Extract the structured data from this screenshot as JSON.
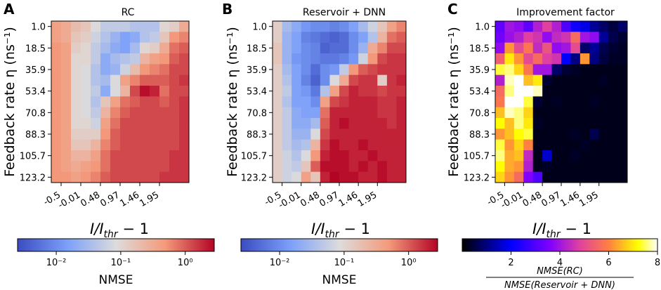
{
  "chart_data": [
    {
      "type": "heatmap",
      "panel_label": "A",
      "title": "RC",
      "ylabel": "Feedback rate η (ns⁻¹)",
      "xlabel": "I/I_thr − 1",
      "y_ticks": [
        "1.0",
        "18.5",
        "35.9",
        "53.4",
        "70.8",
        "88.3",
        "105.7",
        "123.2"
      ],
      "x_ticks": [
        "-0.5",
        "-0.01",
        "0.48",
        "0.97",
        "1.46",
        "1.95"
      ],
      "colorbar": {
        "label": "NMSE",
        "scale": "log",
        "ticks": [
          "10⁻²",
          "10⁻¹",
          "10⁰"
        ],
        "colormap": "coolwarm"
      },
      "grid_note": "log10(NMSE) per cell, rows from η=1.0 (top) to η=123.2, columns from I/Ithr−1=-0.5 upward",
      "values": [
        [
          -0.4,
          -0.5,
          -0.7,
          -0.8,
          -1.1,
          -1.3,
          -1.3,
          -1.3,
          -1.4,
          -1.4,
          -1.4,
          -1.0,
          -0.9,
          -0.5
        ],
        [
          -0.4,
          -0.5,
          -0.8,
          -0.9,
          -1.2,
          -1.4,
          -1.6,
          -1.8,
          -1.7,
          -1.4,
          -1.3,
          -0.8,
          -0.3,
          -0.2
        ],
        [
          -0.3,
          -0.4,
          -0.9,
          -1.0,
          -1.3,
          -1.5,
          -1.7,
          -1.8,
          -1.5,
          -1.0,
          -0.9,
          -0.5,
          -0.1,
          0.0
        ],
        [
          -0.3,
          -0.4,
          -1.0,
          -1.0,
          -1.3,
          -1.7,
          -1.5,
          -1.4,
          -1.3,
          -0.6,
          -0.4,
          -0.3,
          0.0,
          0.1
        ],
        [
          -0.3,
          -0.4,
          -1.0,
          -1.1,
          -1.4,
          -1.7,
          -1.6,
          -1.2,
          -0.7,
          -0.3,
          -0.2,
          -0.1,
          0.1,
          0.1
        ],
        [
          -0.3,
          -0.4,
          -1.0,
          -1.1,
          -1.4,
          -1.5,
          -1.1,
          -0.4,
          -0.2,
          0.0,
          0.0,
          0.0,
          0.1,
          0.2
        ],
        [
          -0.3,
          -0.4,
          -1.0,
          -1.1,
          -1.3,
          -1.7,
          -1.1,
          -0.6,
          0.1,
          0.4,
          0.3,
          -0.1,
          0.1,
          0.1
        ],
        [
          -0.3,
          -0.4,
          -1.0,
          -1.1,
          -1.4,
          -0.8,
          -0.4,
          -0.1,
          0.0,
          0.1,
          0.1,
          0.0,
          0.1,
          0.2
        ],
        [
          -0.3,
          -0.4,
          -1.0,
          -1.1,
          -1.3,
          -0.6,
          -0.2,
          0.0,
          0.1,
          0.1,
          0.1,
          0.1,
          0.1,
          0.2
        ],
        [
          -0.3,
          -0.4,
          -1.0,
          -1.0,
          -1.2,
          -0.4,
          -0.1,
          0.1,
          0.1,
          0.1,
          0.1,
          0.1,
          0.1,
          0.2
        ],
        [
          -0.3,
          -0.4,
          -0.9,
          -0.9,
          -0.9,
          -0.3,
          0.0,
          0.1,
          0.1,
          0.1,
          0.1,
          0.1,
          0.1,
          0.2
        ],
        [
          -0.3,
          -0.4,
          -0.8,
          -0.8,
          -0.6,
          -0.2,
          0.0,
          0.1,
          0.1,
          0.1,
          0.1,
          0.1,
          0.1,
          0.2
        ],
        [
          -0.3,
          -0.4,
          -0.6,
          -0.6,
          -0.4,
          -0.1,
          0.1,
          0.1,
          0.1,
          0.1,
          0.1,
          0.1,
          0.2,
          0.2
        ],
        [
          -0.3,
          -0.4,
          -0.5,
          -0.4,
          -0.3,
          -0.1,
          0.1,
          0.1,
          0.1,
          0.1,
          0.1,
          0.1,
          0.2,
          0.2
        ],
        [
          -0.3,
          -0.3,
          -0.4,
          -0.3,
          -0.2,
          0.0,
          0.1,
          0.1,
          0.1,
          0.1,
          0.1,
          0.2,
          0.2,
          0.2
        ]
      ]
    },
    {
      "type": "heatmap",
      "panel_label": "B",
      "title": "Reservoir + DNN",
      "ylabel": "Feedback rate η (ns⁻¹)",
      "xlabel": "I/I_thr − 1",
      "y_ticks": [
        "1.0",
        "18.5",
        "35.9",
        "53.4",
        "70.8",
        "88.3",
        "105.7",
        "123.2"
      ],
      "x_ticks": [
        "-0.5",
        "-0.01",
        "0.48",
        "0.97",
        "1.46",
        "1.95"
      ],
      "colorbar": {
        "label": "NMSE",
        "scale": "log",
        "ticks": [
          "10⁻²",
          "10⁻¹",
          "10⁰"
        ],
        "colormap": "coolwarm"
      },
      "grid_note": "log10(NMSE) per cell",
      "values": [
        [
          -0.9,
          -1.5,
          -1.7,
          -1.9,
          -2.0,
          -2.0,
          -2.1,
          -2.0,
          -1.8,
          -1.5,
          -1.2,
          -0.8,
          -0.4,
          -0.2
        ],
        [
          -0.9,
          -1.6,
          -1.8,
          -2.1,
          -2.2,
          -2.3,
          -2.4,
          -2.3,
          -2.0,
          -1.8,
          -1.4,
          -0.6,
          -0.1,
          0.0
        ],
        [
          -0.8,
          -1.6,
          -1.8,
          -2.0,
          -2.1,
          -2.4,
          -2.3,
          -2.3,
          -2.0,
          -1.6,
          -0.5,
          -0.2,
          0.1,
          0.1
        ],
        [
          -0.8,
          -1.6,
          -1.9,
          -2.0,
          -2.1,
          -2.2,
          -2.2,
          -2.1,
          -1.9,
          -1.2,
          -0.3,
          0.1,
          0.2,
          0.2
        ],
        [
          -0.9,
          -1.5,
          -1.8,
          -2.0,
          -2.3,
          -2.0,
          -1.9,
          -1.3,
          -0.3,
          0.0,
          0.1,
          0.2,
          0.2,
          0.2
        ],
        [
          -0.9,
          -1.4,
          -1.8,
          -2.1,
          -2.4,
          -2.0,
          -1.1,
          -0.5,
          0.1,
          0.2,
          0.2,
          -0.9,
          0.2,
          0.3
        ],
        [
          -0.9,
          -1.3,
          -1.8,
          -1.9,
          -2.2,
          -1.4,
          -0.4,
          0.1,
          0.3,
          0.2,
          0.2,
          0.1,
          0.2,
          0.2
        ],
        [
          -0.9,
          -1.4,
          -1.8,
          -1.8,
          -2.0,
          -0.4,
          0.1,
          0.2,
          0.3,
          0.3,
          0.3,
          0.2,
          0.2,
          0.3
        ],
        [
          -0.9,
          -1.3,
          -1.7,
          -1.8,
          -1.8,
          -0.1,
          0.3,
          0.3,
          0.3,
          0.3,
          0.3,
          0.2,
          0.2,
          0.3
        ],
        [
          -0.9,
          -1.3,
          -1.7,
          -1.7,
          -1.5,
          0.0,
          0.3,
          0.4,
          0.3,
          0.3,
          0.3,
          0.3,
          0.2,
          0.3
        ],
        [
          -0.9,
          -1.3,
          -1.6,
          -1.6,
          -1.1,
          0.1,
          0.3,
          0.3,
          0.3,
          0.3,
          0.3,
          0.3,
          0.3,
          0.3
        ],
        [
          -0.9,
          -1.3,
          -1.5,
          -1.4,
          -0.6,
          0.2,
          0.4,
          0.3,
          0.3,
          0.4,
          0.3,
          0.3,
          0.3,
          0.3
        ],
        [
          -0.9,
          -1.2,
          -1.4,
          -1.1,
          -0.3,
          0.3,
          0.4,
          0.4,
          0.3,
          0.3,
          0.4,
          0.3,
          0.3,
          0.3
        ],
        [
          -0.9,
          -1.2,
          -1.3,
          -0.8,
          0.0,
          0.4,
          0.4,
          0.4,
          0.3,
          0.4,
          0.3,
          0.4,
          0.3,
          0.3
        ],
        [
          -0.9,
          -1.2,
          -1.1,
          -0.4,
          -0.8,
          0.3,
          0.5,
          0.4,
          0.4,
          0.3,
          0.3,
          0.4,
          0.3,
          0.3
        ]
      ]
    },
    {
      "type": "heatmap",
      "panel_label": "C",
      "title": "Improvement factor",
      "ylabel": "Feedback rate η (ns⁻¹)",
      "xlabel": "I/I_thr − 1",
      "y_ticks": [
        "1.0",
        "18.5",
        "35.9",
        "53.4",
        "70.8",
        "88.3",
        "105.7",
        "123.2"
      ],
      "x_ticks": [
        "-0.5",
        "-0.01",
        "0.48",
        "0.97",
        "1.46",
        "1.95"
      ],
      "colorbar": {
        "label": "NMSE(RC) / NMSE(Reservoir + DNN)",
        "scale": "linear",
        "range": [
          0,
          8
        ],
        "ticks": [
          "2",
          "4",
          "6",
          "8"
        ],
        "colormap": "gnuplot2"
      },
      "grid_note": "improvement factor per cell",
      "values": [
        [
          3.2,
          4.0,
          3.8,
          3.2,
          4.2,
          4.8,
          4.2,
          3.0,
          2.2,
          1.8,
          1.2,
          0.8,
          0.5,
          0.8
        ],
        [
          3.4,
          3.9,
          4.2,
          4.8,
          4.6,
          3.8,
          4.4,
          4.6,
          5.6,
          4.0,
          3.8,
          1.2,
          0.6,
          0.4
        ],
        [
          3.8,
          6.2,
          5.0,
          5.8,
          4.4,
          5.2,
          3.8,
          4.0,
          5.0,
          0.8,
          1.2,
          0.6,
          0.4,
          0.3
        ],
        [
          5.4,
          7.0,
          6.2,
          5.0,
          5.6,
          4.8,
          4.6,
          2.0,
          1.0,
          6.2,
          1.0,
          0.5,
          0.3,
          0.3
        ],
        [
          7.4,
          7.6,
          6.8,
          5.8,
          4.0,
          4.0,
          0.8,
          0.4,
          0.3,
          0.2,
          0.2,
          0.2,
          0.2,
          0.2
        ],
        [
          4.2,
          7.8,
          8.0,
          6.6,
          7.0,
          0.4,
          0.2,
          0.2,
          0.2,
          0.2,
          0.2,
          0.3,
          0.2,
          0.2
        ],
        [
          5.6,
          7.6,
          8.0,
          8.0,
          7.8,
          0.2,
          0.2,
          0.2,
          0.2,
          0.2,
          0.2,
          0.2,
          0.2,
          0.2
        ],
        [
          5.8,
          8.0,
          8.0,
          7.4,
          0.4,
          0.2,
          0.3,
          0.2,
          0.2,
          0.2,
          0.3,
          0.2,
          0.2,
          0.2
        ],
        [
          6.6,
          7.8,
          7.6,
          6.8,
          0.2,
          0.2,
          0.2,
          0.2,
          0.2,
          0.2,
          0.2,
          0.2,
          0.2,
          0.2
        ],
        [
          7.2,
          6.6,
          7.6,
          7.0,
          0.3,
          0.2,
          0.2,
          0.2,
          0.2,
          0.2,
          0.2,
          0.2,
          0.2,
          0.2
        ],
        [
          6.2,
          6.6,
          7.2,
          7.4,
          0.2,
          0.2,
          0.2,
          0.2,
          0.3,
          0.2,
          0.6,
          0.2,
          0.2,
          0.2
        ],
        [
          7.4,
          6.2,
          6.8,
          6.0,
          0.2,
          0.2,
          0.2,
          0.2,
          0.2,
          0.3,
          0.2,
          0.2,
          0.2,
          0.2
        ],
        [
          7.6,
          6.4,
          6.6,
          4.4,
          0.2,
          1.6,
          0.2,
          0.2,
          0.3,
          0.2,
          0.2,
          0.2,
          0.2,
          0.2
        ],
        [
          7.2,
          6.4,
          6.2,
          4.2,
          0.2,
          0.3,
          0.2,
          0.2,
          0.2,
          0.2,
          0.2,
          0.2,
          0.2,
          0.2
        ],
        [
          6.8,
          6.2,
          5.6,
          3.6,
          3.0,
          0.2,
          0.2,
          0.2,
          0.2,
          0.2,
          0.2,
          0.2,
          0.2,
          0.2
        ]
      ]
    }
  ]
}
